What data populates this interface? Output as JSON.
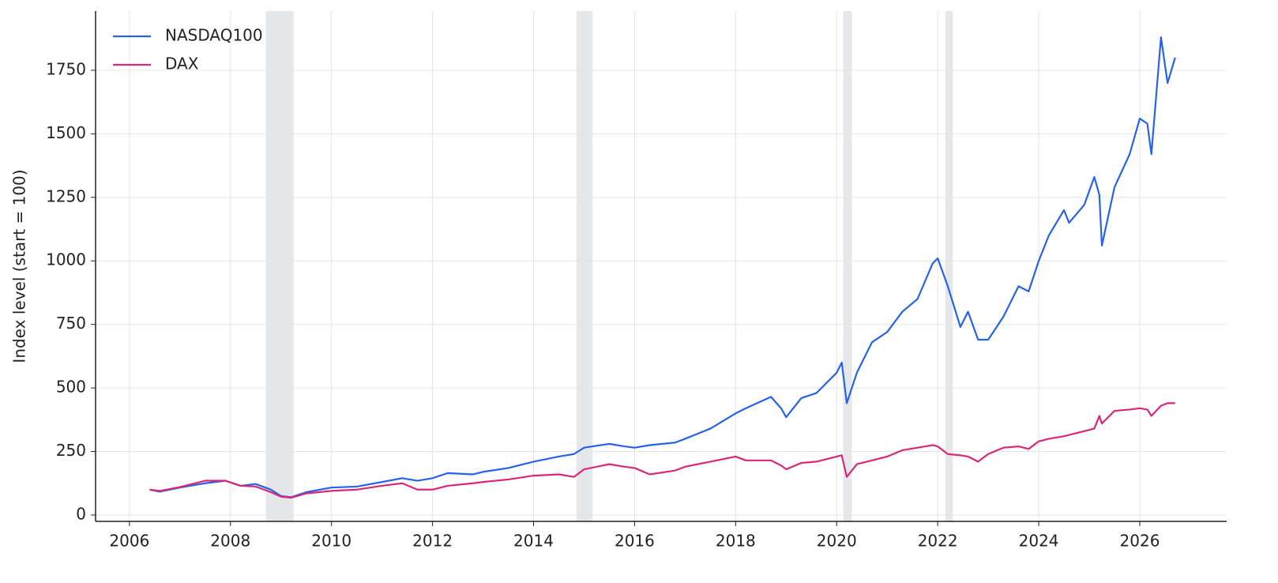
{
  "chart_data": {
    "type": "line",
    "ylabel": "Index level (start = 100)",
    "xlim": [
      2005.33,
      2027.72
    ],
    "ylim": [
      -25,
      1983
    ],
    "xticks": [
      2006,
      2008,
      2010,
      2012,
      2014,
      2016,
      2018,
      2020,
      2022,
      2024,
      2026
    ],
    "yticks": [
      0,
      250,
      500,
      750,
      1000,
      1250,
      1500,
      1750
    ],
    "grid": true,
    "legend": "upper left",
    "shaded_spans": [
      [
        2008.7,
        2009.25
      ],
      [
        2014.85,
        2015.17
      ],
      [
        2020.13,
        2020.3
      ],
      [
        2022.15,
        2022.3
      ]
    ],
    "shade_color": "#e5e7eb",
    "x": [
      2006.4,
      2006.6,
      2007.0,
      2007.5,
      2007.9,
      2008.2,
      2008.5,
      2008.8,
      2009.0,
      2009.2,
      2009.5,
      2010.0,
      2010.5,
      2011.0,
      2011.4,
      2011.7,
      2012.0,
      2012.3,
      2012.8,
      2013.0,
      2013.5,
      2014.0,
      2014.5,
      2014.8,
      2015.0,
      2015.5,
      2015.8,
      2016.0,
      2016.3,
      2016.8,
      2017.0,
      2017.5,
      2018.0,
      2018.2,
      2018.7,
      2018.9,
      2019.0,
      2019.3,
      2019.6,
      2020.0,
      2020.1,
      2020.2,
      2020.4,
      2020.7,
      2021.0,
      2021.3,
      2021.6,
      2021.9,
      2022.0,
      2022.2,
      2022.45,
      2022.6,
      2022.8,
      2023.0,
      2023.3,
      2023.6,
      2023.8,
      2024.0,
      2024.2,
      2024.5,
      2024.6,
      2024.9,
      2025.1,
      2025.2,
      2025.25,
      2025.5,
      2025.8,
      2026.0,
      2026.15,
      2026.23,
      2026.42,
      2026.55,
      2026.7
    ],
    "series": [
      {
        "name": "NASDAQ100",
        "color": "#2563eb",
        "values": [
          100,
          92,
          108,
          125,
          135,
          115,
          122,
          100,
          75,
          70,
          90,
          108,
          112,
          130,
          145,
          135,
          145,
          165,
          160,
          170,
          185,
          210,
          230,
          240,
          265,
          280,
          270,
          265,
          275,
          285,
          300,
          340,
          400,
          420,
          465,
          420,
          385,
          460,
          480,
          560,
          600,
          440,
          560,
          680,
          720,
          800,
          850,
          990,
          1010,
          900,
          740,
          800,
          690,
          690,
          780,
          900,
          880,
          1000,
          1100,
          1200,
          1150,
          1220,
          1330,
          1260,
          1060,
          1290,
          1420,
          1560,
          1540,
          1420,
          1880,
          1700,
          1800
        ]
      },
      {
        "name": "DAX",
        "color": "#db2777",
        "values": [
          100,
          95,
          110,
          135,
          135,
          115,
          112,
          90,
          72,
          68,
          85,
          95,
          100,
          115,
          125,
          100,
          100,
          115,
          125,
          130,
          140,
          155,
          160,
          150,
          180,
          200,
          190,
          185,
          160,
          175,
          190,
          210,
          230,
          215,
          215,
          195,
          180,
          205,
          210,
          230,
          235,
          150,
          200,
          215,
          230,
          255,
          265,
          275,
          270,
          240,
          235,
          230,
          210,
          240,
          265,
          270,
          260,
          290,
          300,
          310,
          315,
          330,
          340,
          390,
          360,
          410,
          415,
          420,
          415,
          390,
          430,
          440,
          440
        ]
      }
    ]
  }
}
